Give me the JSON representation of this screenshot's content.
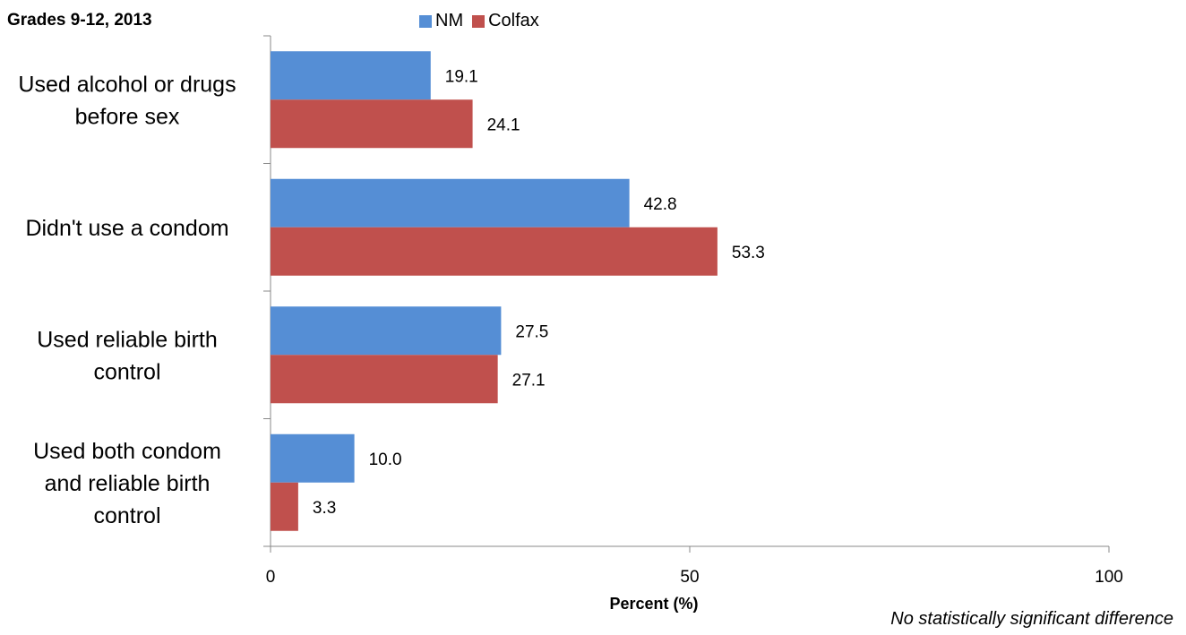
{
  "title": "Grades 9-12, 2013",
  "footnote": "No statistically significant difference",
  "colors": {
    "NM": "#558ED5",
    "Colfax": "#C0504D"
  },
  "chart_data": {
    "type": "bar",
    "orientation": "horizontal",
    "title": "Grades 9-12, 2013",
    "xlabel": "Percent (%)",
    "ylabel": "",
    "xlim": [
      0,
      100
    ],
    "x_ticks": [
      0,
      50,
      100
    ],
    "legend_position": "top",
    "grid": false,
    "categories": [
      "Used alcohol or drugs before sex",
      "Didn't use a condom",
      "Used reliable birth control",
      "Used both condom and reliable birth control"
    ],
    "category_label_lines": [
      [
        "Used alcohol or drugs",
        "before sex"
      ],
      [
        "Didn't use a condom"
      ],
      [
        "Used reliable birth",
        "control"
      ],
      [
        "Used both condom",
        "and reliable birth",
        "control"
      ]
    ],
    "series": [
      {
        "name": "NM",
        "values": [
          19.1,
          42.8,
          27.5,
          10.0
        ],
        "labels": [
          "19.1",
          "42.8",
          "27.5",
          "10.0"
        ]
      },
      {
        "name": "Colfax",
        "values": [
          24.1,
          53.3,
          27.1,
          3.3
        ],
        "labels": [
          "24.1",
          "53.3",
          "27.1",
          "3.3"
        ]
      }
    ]
  }
}
